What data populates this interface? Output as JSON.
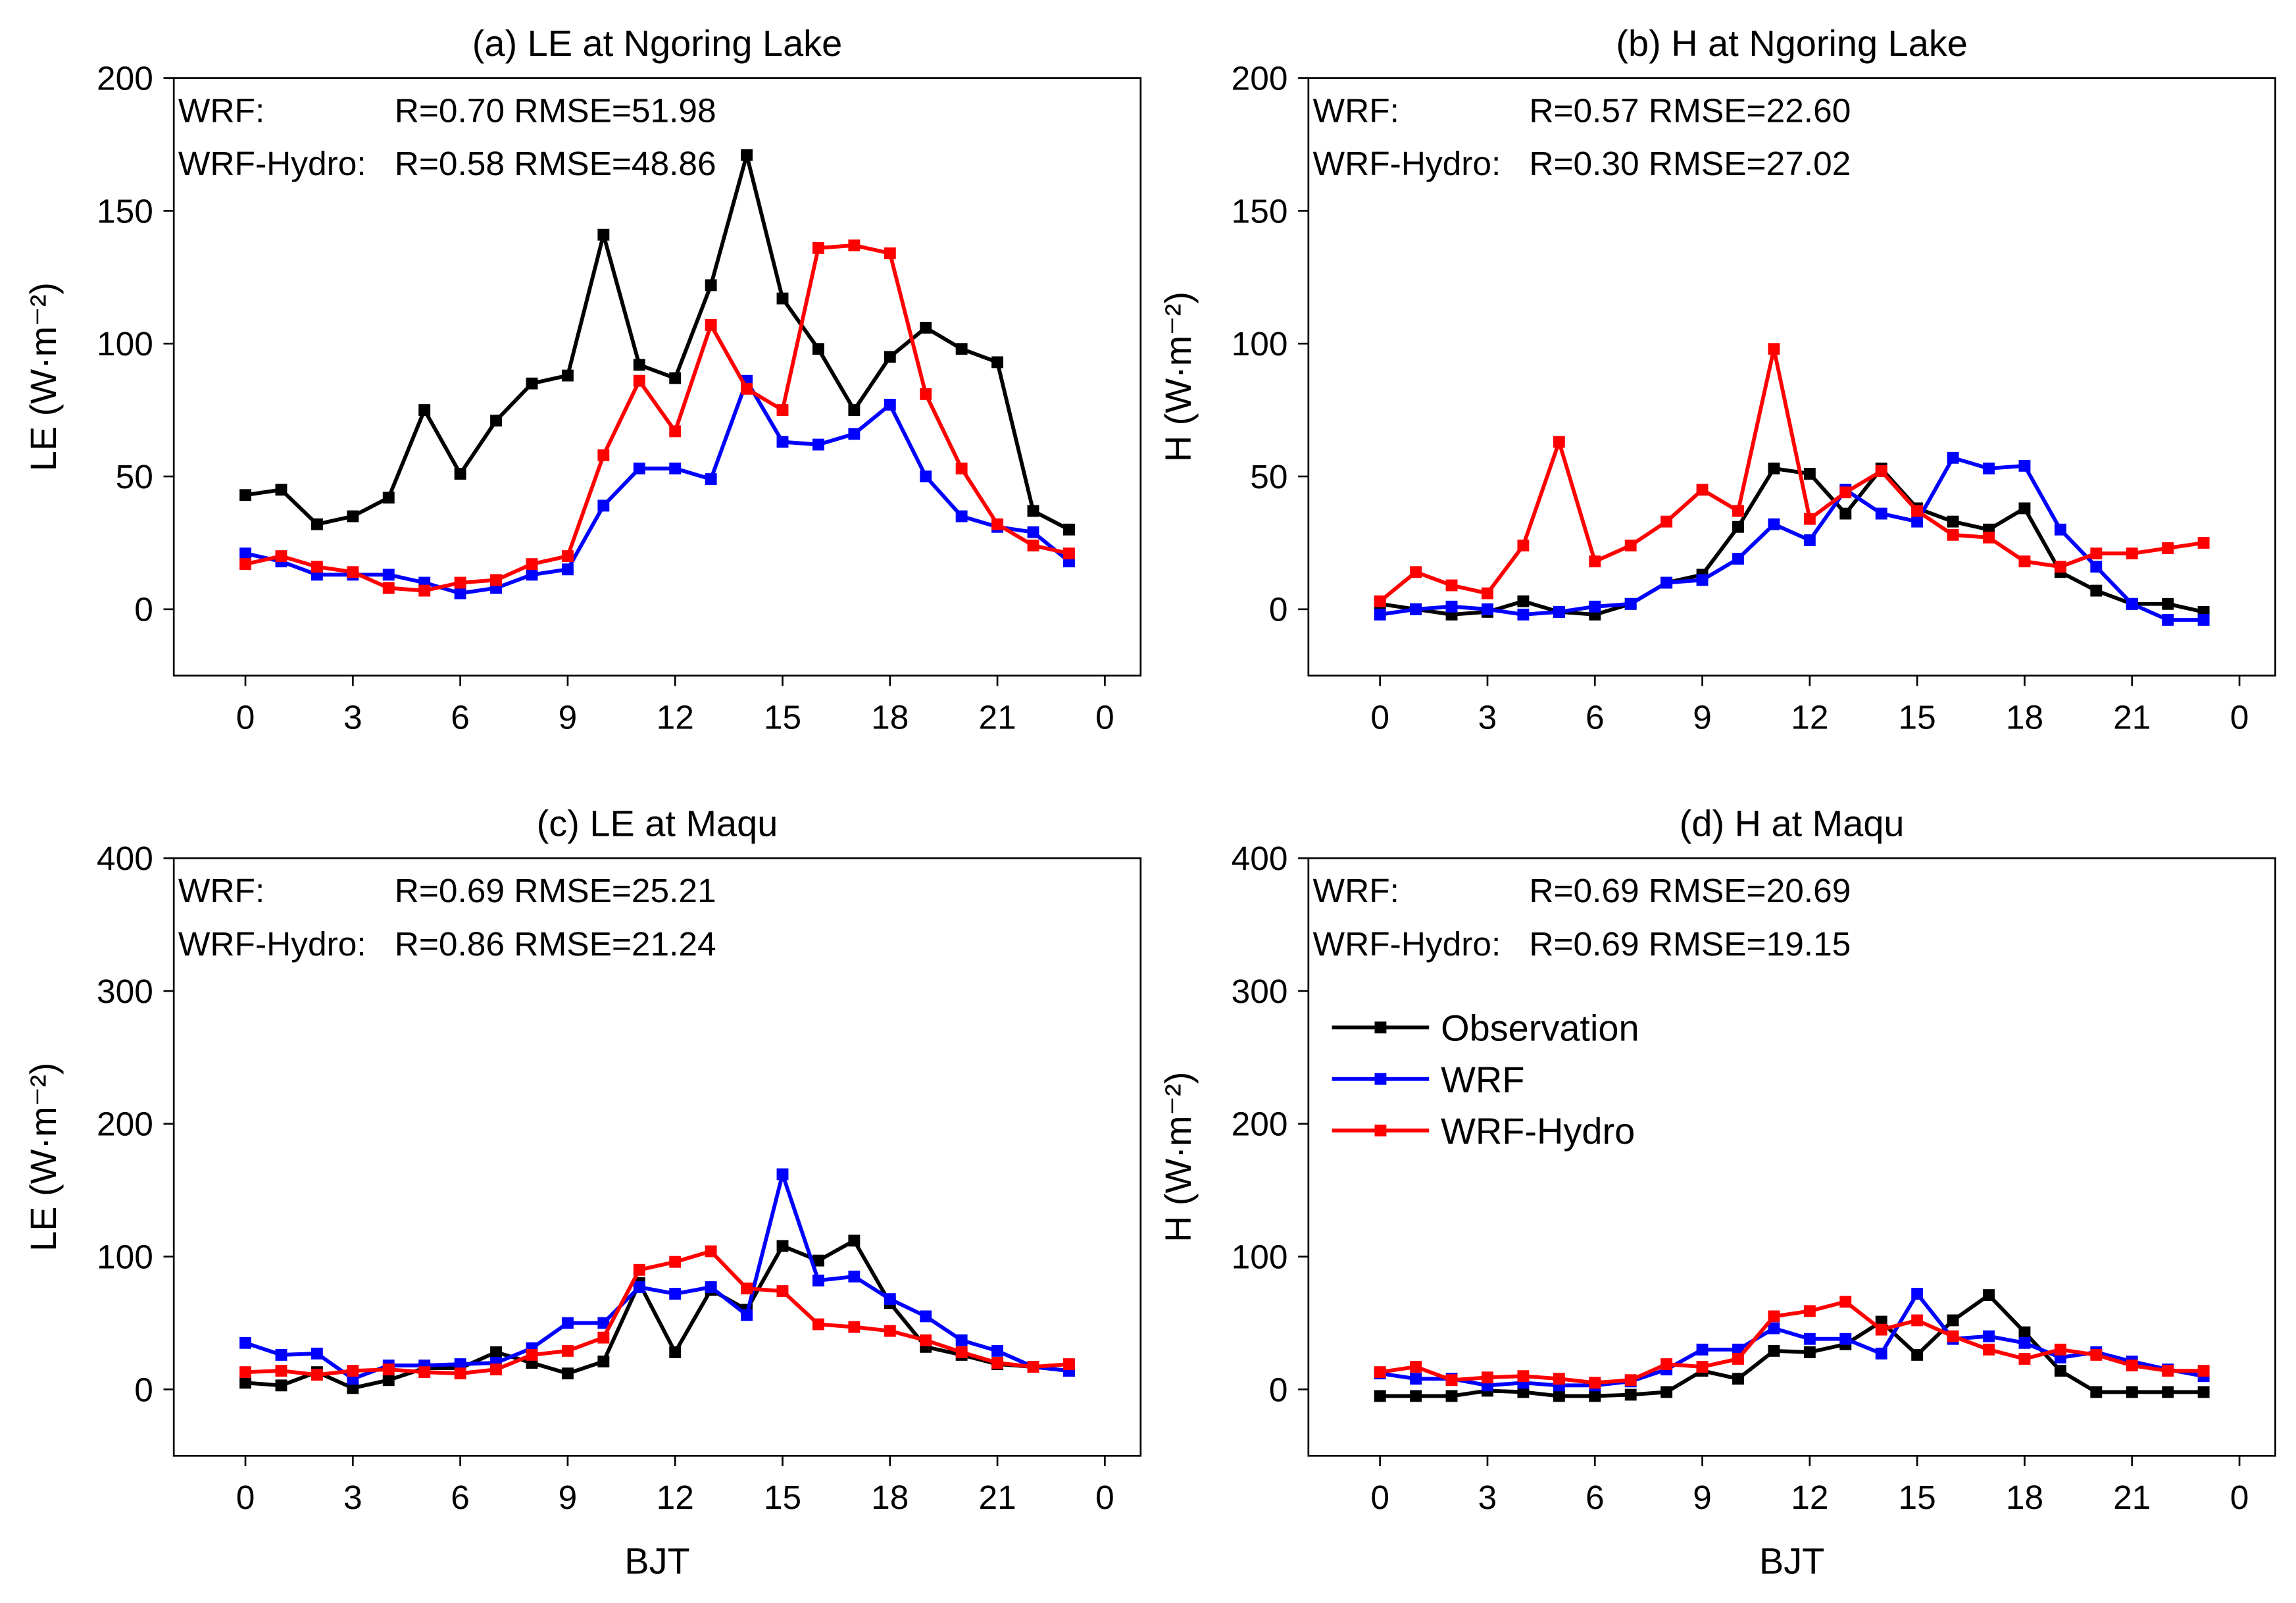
{
  "chart_data": [
    {
      "type": "line",
      "title": "(a) LE at Ngoring Lake",
      "ylabel": "LE (W·m⁻²)",
      "x": [
        0,
        1,
        2,
        3,
        4,
        5,
        6,
        7,
        8,
        9,
        10,
        11,
        12,
        13,
        14,
        15,
        16,
        17,
        18,
        19,
        20,
        21,
        22,
        23
      ],
      "xlim": [
        -2,
        25
      ],
      "xticks": [
        0,
        3,
        6,
        9,
        12,
        15,
        18,
        21,
        {
          "value": 24,
          "label": "0"
        }
      ],
      "ylim": [
        -25,
        200
      ],
      "yticks": [
        0,
        50,
        100,
        150,
        200
      ],
      "annotations": [
        {
          "label": "WRF:",
          "text": "R=0.70 RMSE=51.98"
        },
        {
          "label": "WRF-Hydro:",
          "text": "R=0.58 RMSE=48.86"
        }
      ],
      "series": [
        {
          "name": "Observation",
          "color": "#000000",
          "values": [
            43,
            45,
            32,
            35,
            42,
            75,
            51,
            71,
            85,
            88,
            141,
            92,
            87,
            122,
            171,
            117,
            98,
            75,
            95,
            106,
            98,
            93,
            37,
            30
          ]
        },
        {
          "name": "WRF",
          "color": "#0000ff",
          "values": [
            21,
            18,
            13,
            13,
            13,
            10,
            6,
            8,
            13,
            15,
            39,
            53,
            53,
            49,
            86,
            63,
            62,
            66,
            77,
            50,
            35,
            31,
            29,
            18
          ]
        },
        {
          "name": "WRF-Hydro",
          "color": "#ff0000",
          "values": [
            17,
            20,
            16,
            14,
            8,
            7,
            10,
            11,
            17,
            20,
            58,
            86,
            67,
            107,
            83,
            75,
            136,
            137,
            134,
            81,
            53,
            32,
            24,
            21
          ]
        }
      ]
    },
    {
      "type": "line",
      "title": "(b) H at Ngoring Lake",
      "ylabel": "H (W·m⁻²)",
      "x": [
        0,
        1,
        2,
        3,
        4,
        5,
        6,
        7,
        8,
        9,
        10,
        11,
        12,
        13,
        14,
        15,
        16,
        17,
        18,
        19,
        20,
        21,
        22,
        23
      ],
      "xlim": [
        -2,
        25
      ],
      "xticks": [
        0,
        3,
        6,
        9,
        12,
        15,
        18,
        21,
        {
          "value": 24,
          "label": "0"
        }
      ],
      "ylim": [
        -25,
        200
      ],
      "yticks": [
        0,
        50,
        100,
        150,
        200
      ],
      "annotations": [
        {
          "label": "WRF:",
          "text": "R=0.57 RMSE=22.60"
        },
        {
          "label": "WRF-Hydro:",
          "text": "R=0.30 RMSE=27.02"
        }
      ],
      "series": [
        {
          "name": "Observation",
          "color": "#000000",
          "values": [
            2,
            0,
            -2,
            -1,
            3,
            -1,
            -2,
            2,
            10,
            13,
            31,
            53,
            51,
            36,
            53,
            38,
            33,
            30,
            38,
            14,
            7,
            2,
            2,
            -1
          ]
        },
        {
          "name": "WRF",
          "color": "#0000ff",
          "values": [
            -2,
            0,
            1,
            0,
            -2,
            -1,
            1,
            2,
            10,
            11,
            19,
            32,
            26,
            45,
            36,
            33,
            57,
            53,
            54,
            30,
            16,
            2,
            -4,
            -4
          ]
        },
        {
          "name": "WRF-Hydro",
          "color": "#ff0000",
          "values": [
            3,
            14,
            9,
            6,
            24,
            63,
            18,
            24,
            33,
            45,
            37,
            98,
            34,
            44,
            52,
            37,
            28,
            27,
            18,
            16,
            21,
            21,
            23,
            25
          ]
        }
      ]
    },
    {
      "type": "line",
      "title": "(c) LE at Maqu",
      "xlabel": "BJT",
      "ylabel": "LE (W·m⁻²)",
      "x": [
        0,
        1,
        2,
        3,
        4,
        5,
        6,
        7,
        8,
        9,
        10,
        11,
        12,
        13,
        14,
        15,
        16,
        17,
        18,
        19,
        20,
        21,
        22,
        23
      ],
      "xlim": [
        -2,
        25
      ],
      "xticks": [
        0,
        3,
        6,
        9,
        12,
        15,
        18,
        21,
        {
          "value": 24,
          "label": "0"
        }
      ],
      "ylim": [
        -50,
        400
      ],
      "yticks": [
        0,
        100,
        200,
        300,
        400
      ],
      "annotations": [
        {
          "label": "WRF:",
          "text": "R=0.69 RMSE=25.21"
        },
        {
          "label": "WRF-Hydro:",
          "text": "R=0.86 RMSE=21.24"
        }
      ],
      "series": [
        {
          "name": "Observation",
          "color": "#000000",
          "values": [
            5,
            3,
            13,
            1,
            7,
            16,
            16,
            28,
            20,
            12,
            21,
            80,
            28,
            75,
            60,
            108,
            97,
            112,
            65,
            32,
            26,
            19,
            17,
            14
          ]
        },
        {
          "name": "WRF",
          "color": "#0000ff",
          "values": [
            35,
            26,
            27,
            8,
            18,
            18,
            19,
            20,
            31,
            50,
            50,
            77,
            72,
            77,
            56,
            162,
            82,
            85,
            68,
            55,
            37,
            29,
            17,
            14
          ]
        },
        {
          "name": "WRF-Hydro",
          "color": "#ff0000",
          "values": [
            13,
            14,
            11,
            14,
            15,
            13,
            12,
            15,
            26,
            29,
            39,
            90,
            96,
            104,
            76,
            74,
            49,
            47,
            44,
            37,
            28,
            20,
            17,
            19
          ]
        }
      ]
    },
    {
      "type": "line",
      "title": "(d) H at Maqu",
      "xlabel": "BJT",
      "ylabel": "H (W·m⁻²)",
      "legend": "center left",
      "x": [
        0,
        1,
        2,
        3,
        4,
        5,
        6,
        7,
        8,
        9,
        10,
        11,
        12,
        13,
        14,
        15,
        16,
        17,
        18,
        19,
        20,
        21,
        22,
        23
      ],
      "xlim": [
        -2,
        25
      ],
      "xticks": [
        0,
        3,
        6,
        9,
        12,
        15,
        18,
        21,
        {
          "value": 24,
          "label": "0"
        }
      ],
      "ylim": [
        -50,
        400
      ],
      "yticks": [
        0,
        100,
        200,
        300,
        400
      ],
      "annotations": [
        {
          "label": "WRF:",
          "text": "R=0.69 RMSE=20.69"
        },
        {
          "label": "WRF-Hydro:",
          "text": "R=0.69 RMSE=19.15"
        }
      ],
      "series": [
        {
          "name": "Observation",
          "color": "#000000",
          "values": [
            -5,
            -5,
            -5,
            -1,
            -2,
            -5,
            -5,
            -4,
            -2,
            14,
            8,
            29,
            28,
            34,
            51,
            26,
            52,
            71,
            43,
            14,
            -2,
            -2,
            -2,
            -2
          ]
        },
        {
          "name": "WRF",
          "color": "#0000ff",
          "values": [
            12,
            8,
            8,
            3,
            5,
            3,
            3,
            6,
            15,
            30,
            30,
            46,
            38,
            38,
            27,
            72,
            38,
            40,
            35,
            24,
            28,
            21,
            15,
            10
          ]
        },
        {
          "name": "WRF-Hydro",
          "color": "#ff0000",
          "values": [
            13,
            17,
            7,
            9,
            10,
            8,
            5,
            7,
            19,
            17,
            23,
            55,
            59,
            66,
            45,
            52,
            40,
            30,
            23,
            30,
            26,
            18,
            14,
            14
          ]
        }
      ]
    }
  ]
}
